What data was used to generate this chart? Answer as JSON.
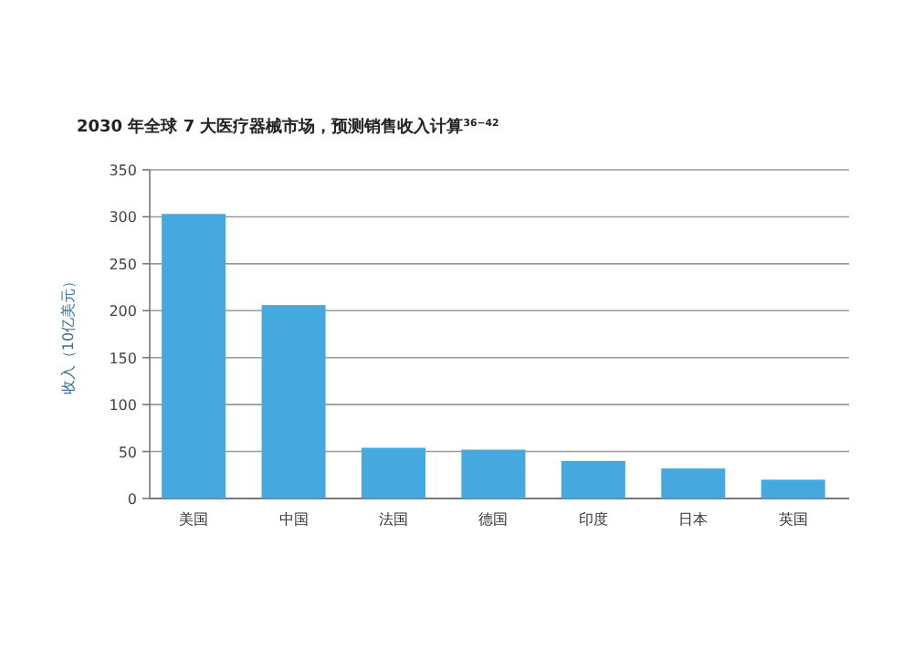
{
  "chart_data": {
    "type": "bar",
    "title": "2030 年全球 7 大医疗器械市场，预测销售收入计算$^{36−42}$",
    "ylabel": "收入（10亿美元）",
    "categories": [
      "美国",
      "中国",
      "法国",
      "德国",
      "印度",
      "日本",
      "英国"
    ],
    "values": [
      303,
      206,
      54,
      52,
      40,
      32,
      20
    ],
    "color": "#45a8de",
    "ylim": [
      0,
      350
    ],
    "yticks": [
      0,
      50,
      100,
      150,
      200,
      250,
      300,
      350
    ],
    "grid": "y"
  }
}
